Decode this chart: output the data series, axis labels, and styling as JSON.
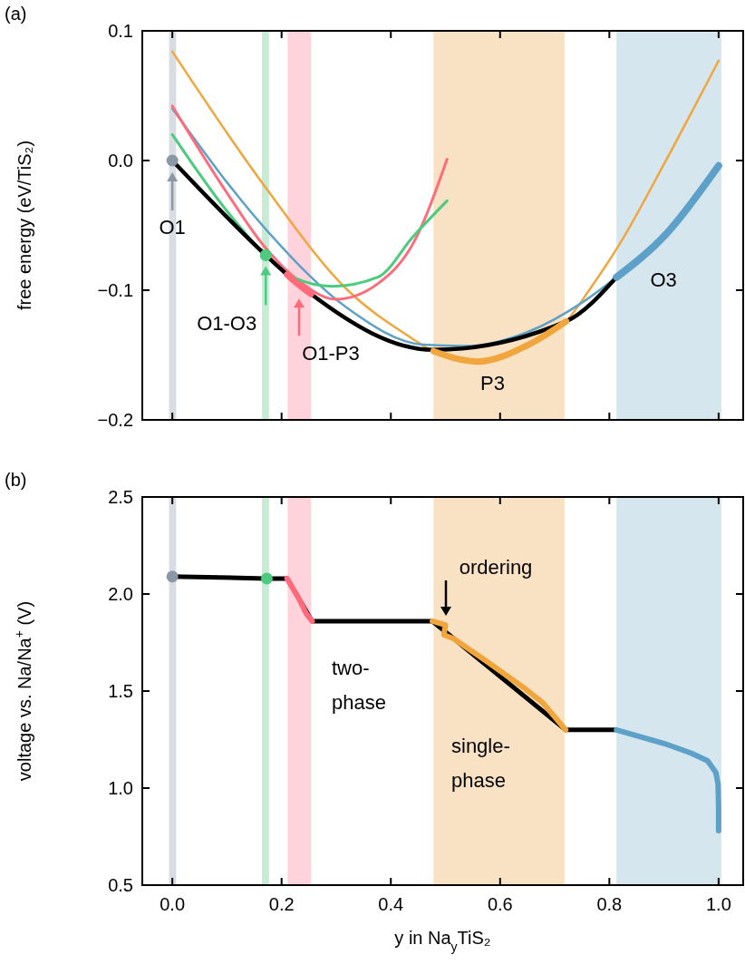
{
  "chart_data": [
    {
      "type": "line",
      "title": "(a)",
      "ylabel": "free energy (eV/TiS₂)",
      "xlim": [
        -0.055,
        1.045
      ],
      "ylim": [
        -0.2,
        0.1
      ],
      "xticks": [
        {
          "value": 0,
          "label": null
        },
        {
          "value": 0.2,
          "label": null
        },
        {
          "value": 0.4,
          "label": null
        },
        {
          "value": 0.6,
          "label": null
        },
        {
          "value": 0.8,
          "label": null
        },
        {
          "value": 1,
          "label": null
        }
      ],
      "yticks": [
        {
          "value": -0.2,
          "label": "−0.2"
        },
        {
          "value": -0.1,
          "label": "−0.1"
        },
        {
          "value": 0,
          "label": "0.0"
        },
        {
          "value": 0.1,
          "label": "0.1"
        }
      ],
      "tick_labels": "y",
      "grid": false,
      "bands": [
        {
          "axis": "x",
          "from": -0.006,
          "to": 0.007,
          "color": "#d9dde2"
        },
        {
          "axis": "x",
          "from": 0.164,
          "to": 0.177,
          "color": "#c6ecd6"
        },
        {
          "axis": "x",
          "from": 0.211,
          "to": 0.254,
          "color": "#ffd3db"
        },
        {
          "axis": "x",
          "from": 0.478,
          "to": 0.718,
          "color": "#f9e2c3"
        },
        {
          "axis": "x",
          "from": 0.813,
          "to": 1.005,
          "color": "#d6e6ef"
        }
      ],
      "series": [
        {
          "color": "#f0a63c",
          "x": [
            0,
            0.171,
            0.321,
            0.431,
            0.473,
            0.558,
            0.652,
            0.721,
            0.763,
            0.818,
            0.901,
            1.0
          ],
          "values": [
            0.084,
            -0.021,
            -0.1,
            -0.135,
            -0.146,
            -0.155,
            -0.142,
            -0.124,
            -0.1,
            -0.065,
            -0.002,
            0.077
          ]
        },
        {
          "color": "#5ea1c8",
          "x": [
            0,
            0.171,
            0.321,
            0.459,
            0.542,
            0.652,
            0.752,
            0.813
          ],
          "values": [
            0.04,
            -0.053,
            -0.114,
            -0.142,
            -0.143,
            -0.132,
            -0.109,
            -0.09
          ]
        },
        {
          "color": "#ff6b7a",
          "x": [
            0,
            0.1,
            0.166,
            0.232,
            0.299,
            0.376,
            0.442,
            0.503
          ],
          "values": [
            0.042,
            -0.025,
            -0.065,
            -0.093,
            -0.107,
            -0.095,
            -0.063,
            0.001
          ]
        },
        {
          "color": "#4ccb7f",
          "x": [
            0,
            0.1,
            0.171,
            0.221,
            0.293,
            0.376,
            0.442,
            0.503
          ],
          "values": [
            0.02,
            -0.039,
            -0.073,
            -0.09,
            -0.097,
            -0.09,
            -0.058,
            -0.031
          ]
        },
        {
          "color": "#000000",
          "x": [
            0,
            0.171,
            0.21,
            0.254,
            0.478,
            0.721,
            0.813
          ],
          "values": [
            0,
            -0.073,
            -0.088,
            -0.103,
            -0.146,
            -0.124,
            -0.09
          ]
        },
        {
          "color": "#ff6b7a",
          "x": [
            0.21,
            0.232,
            0.254
          ],
          "values": [
            -0.088,
            -0.096,
            -0.103
          ]
        },
        {
          "color": "#f0a63c",
          "x": [
            0.478,
            0.558,
            0.652,
            0.721
          ],
          "values": [
            -0.147,
            -0.155,
            -0.142,
            -0.124
          ]
        },
        {
          "color": "#5ea1c8",
          "x": [
            0.813,
            0.901,
            1.0
          ],
          "values": [
            -0.09,
            -0.058,
            -0.004
          ]
        },
        {
          "type": "scatter",
          "marker": "circle",
          "color": "#8a97a5",
          "x": [
            0
          ],
          "values": [
            0
          ]
        },
        {
          "type": "scatter",
          "marker": "circle",
          "color": "#4ccb7f",
          "x": [
            0.171
          ],
          "values": [
            -0.073
          ]
        }
      ],
      "annotations": [
        {
          "text": "O1",
          "x": 0,
          "y": 0
        },
        {
          "text": "O1-O3",
          "x": 0.171,
          "y": -0.073
        },
        {
          "text": "O1-P3",
          "x": 0.232,
          "y": -0.098
        },
        {
          "text": "P3",
          "x": 0.558,
          "y": -0.155
        },
        {
          "text": "O3",
          "x": 0.813,
          "y": -0.09
        }
      ]
    },
    {
      "type": "line",
      "title": "(b)",
      "ylabel": "voltage vs. Na/Na$^{+}$ (V)",
      "xlabel": "y in Na$_{y}$TiS₂",
      "xlim": [
        -0.055,
        1.045
      ],
      "ylim": [
        0.5,
        2.5
      ],
      "xticks": [
        {
          "value": 0,
          "label": "0.0"
        },
        {
          "value": 0.2,
          "label": "0.2"
        },
        {
          "value": 0.4,
          "label": "0.4"
        },
        {
          "value": 0.6,
          "label": "0.6"
        },
        {
          "value": 0.8,
          "label": "0.8"
        },
        {
          "value": 1,
          "label": "1.0"
        }
      ],
      "yticks": [
        {
          "value": 0.5,
          "label": "0.5"
        },
        {
          "value": 1,
          "label": "1.0"
        },
        {
          "value": 1.5,
          "label": "1.5"
        },
        {
          "value": 2,
          "label": "2.0"
        },
        {
          "value": 2.5,
          "label": "2.5"
        }
      ],
      "grid": false,
      "bands": [
        {
          "axis": "x",
          "from": -0.006,
          "to": 0.007,
          "color": "#d9dde2"
        },
        {
          "axis": "x",
          "from": 0.164,
          "to": 0.177,
          "color": "#c6ecd6"
        },
        {
          "axis": "x",
          "from": 0.211,
          "to": 0.254,
          "color": "#ffd3db"
        },
        {
          "axis": "x",
          "from": 0.478,
          "to": 0.718,
          "color": "#f9e2c3"
        },
        {
          "axis": "x",
          "from": 0.813,
          "to": 1.005,
          "color": "#d6e6ef"
        }
      ],
      "series": [
        {
          "color": "#000000",
          "x": [
            0,
            0.173,
            0.21,
            0.256,
            0.476,
            0.72,
            0.813
          ],
          "values": [
            2.09,
            2.08,
            2.08,
            1.86,
            1.86,
            1.3,
            1.3
          ]
        },
        {
          "color": "#ff6b7a",
          "x": [
            0.21,
            0.231,
            0.245,
            0.256
          ],
          "values": [
            2.08,
            1.98,
            1.9,
            1.86
          ]
        },
        {
          "color": "#f0a63c",
          "x": [
            0.476,
            0.5,
            0.497,
            0.515,
            0.572,
            0.642,
            0.678,
            0.72
          ],
          "values": [
            1.86,
            1.84,
            1.79,
            1.77,
            1.66,
            1.52,
            1.44,
            1.3
          ]
        },
        {
          "color": "#5ea1c8",
          "x": [
            0.813,
            0.9,
            0.95,
            0.98,
            0.995,
            0.999,
            1.0,
            1.0
          ],
          "values": [
            1.3,
            1.23,
            1.18,
            1.14,
            1.08,
            1.02,
            0.9,
            0.78
          ]
        },
        {
          "type": "scatter",
          "marker": "circle",
          "color": "#8a97a5",
          "x": [
            0
          ],
          "values": [
            2.09
          ]
        },
        {
          "type": "scatter",
          "marker": "circle",
          "color": "#4ccb7f",
          "x": [
            0.173
          ],
          "values": [
            2.08
          ]
        }
      ],
      "annotations": [
        "ordering",
        "two-\nphase",
        "single-\nphase"
      ]
    }
  ]
}
